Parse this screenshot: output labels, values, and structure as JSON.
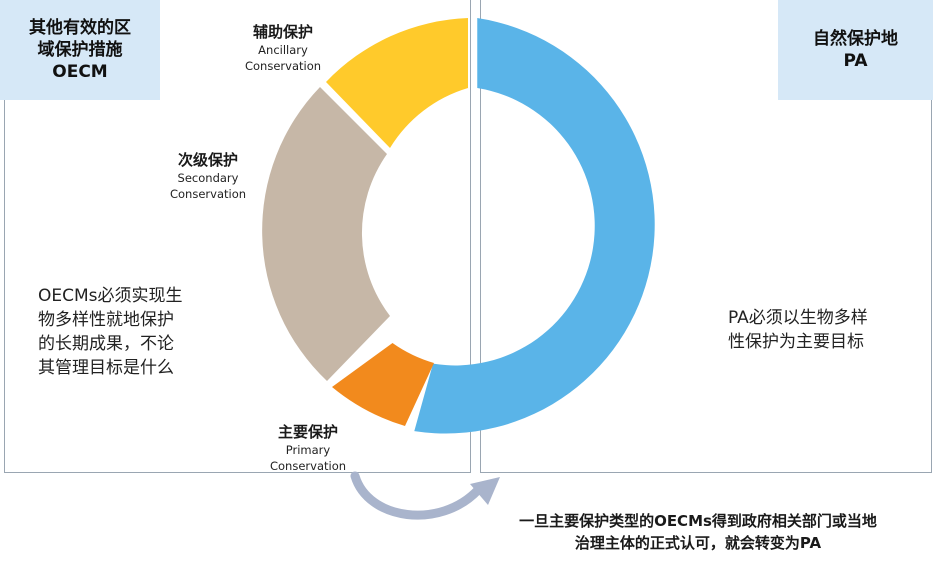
{
  "oecm_tag": {
    "line1": "其他有效的区",
    "line2": "域保护措施",
    "line3": "OECM"
  },
  "pa_tag": {
    "line1": "自然保护地",
    "line2": "PA"
  },
  "segments": {
    "ancillary": {
      "cn": "辅助保护",
      "en1": "Ancillary",
      "en2": "Conservation",
      "color": "#ffca2b"
    },
    "secondary": {
      "cn": "次级保护",
      "en1": "Secondary",
      "en2": "Conservation",
      "color": "#c6b7a7"
    },
    "primary": {
      "cn": "主要保护",
      "en1": "Primary",
      "en2": "Conservation",
      "color": "#f28a1d"
    },
    "pa": {
      "color": "#5ab4e8"
    }
  },
  "left_note": {
    "line1": "OECMs必须实现生",
    "line2": "物多样性就地保护",
    "line3": "的长期成果，不论",
    "line4": "其管理目标是什么"
  },
  "right_note": {
    "line1": "PA必须以生物多样",
    "line2": "性保护为主要目标"
  },
  "caption": {
    "line1": "一旦主要保护类型的OECMs得到政府相关部门或当地",
    "line2": "治理主体的正式认可，就会转变为PA"
  },
  "arrow_color": "#a9b4cc"
}
